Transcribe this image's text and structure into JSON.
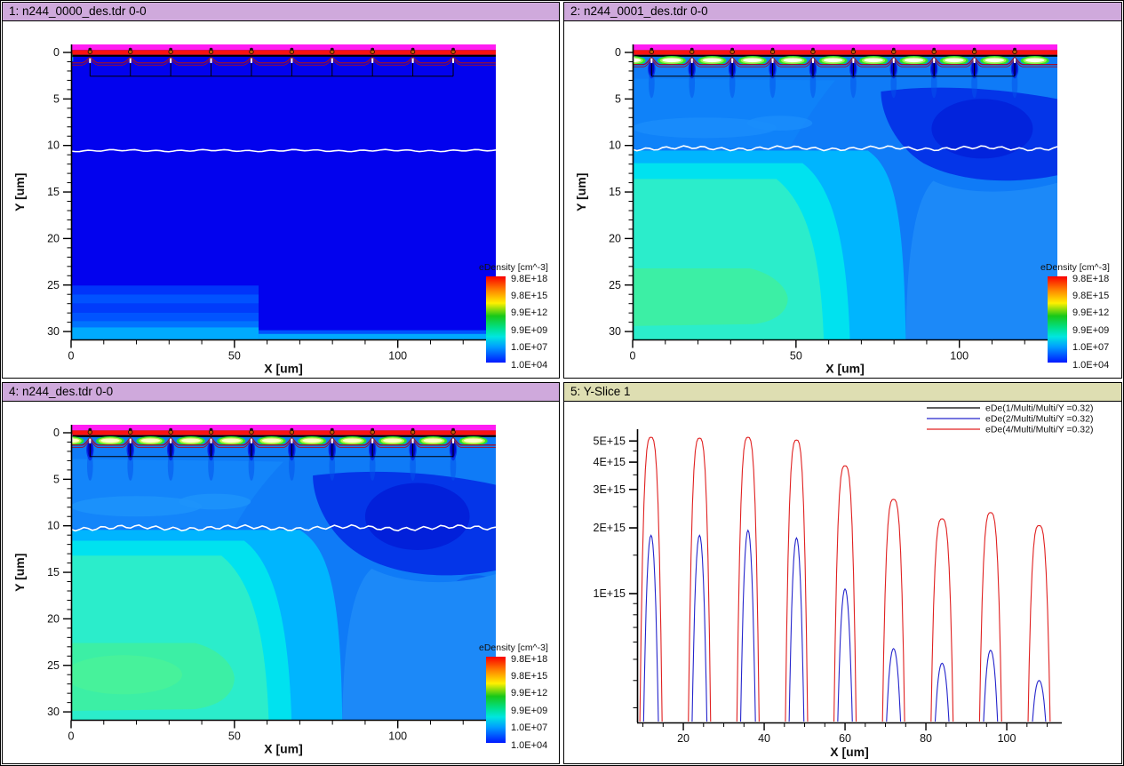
{
  "panels": {
    "p1": {
      "title": "1: n244_0000_des.tdr 0-0"
    },
    "p2": {
      "title": "2: n244_0001_des.tdr 0-0"
    },
    "p4": {
      "title": "4: n244_des.tdr 0-0"
    },
    "p5": {
      "title": "5: Y-Slice 1"
    }
  },
  "axes": {
    "contour": {
      "xlabel": "X [um]",
      "ylabel": "Y [um]",
      "x_ticks": [
        0,
        50,
        100
      ],
      "x_minor_step": 10,
      "x_max": 130,
      "y_ticks": [
        0,
        5,
        10,
        15,
        20,
        25,
        30
      ],
      "y_minor_step": 1
    },
    "slice": {
      "xlabel": "X [um]",
      "x_ticks": [
        20,
        40,
        60,
        80,
        100
      ],
      "x_minor_step": 5,
      "y_ticks": [
        {
          "label": "1E+15",
          "v": 1000000000000000.0
        },
        {
          "label": "2E+15",
          "v": 2000000000000000.0
        },
        {
          "label": "3E+15",
          "v": 3000000000000000.0
        },
        {
          "label": "4E+15",
          "v": 4000000000000000.0
        },
        {
          "label": "5E+15",
          "v": 5000000000000000.0
        }
      ],
      "y_minor": [
        300000000000000.0,
        400000000000000.0,
        500000000000000.0,
        600000000000000.0,
        700000000000000.0,
        800000000000000.0,
        900000000000000.0,
        1500000000000000.0,
        2500000000000000.0,
        3500000000000000.0,
        4500000000000000.0
      ]
    }
  },
  "colorbar": {
    "title": "eDensity [cm^-3]",
    "tick_labels": [
      "9.8E+18",
      "9.8E+15",
      "9.9E+12",
      "9.9E+09",
      "1.0E+07",
      "1.0E+04"
    ],
    "gradient": [
      [
        0,
        "#fa0000"
      ],
      [
        0.17,
        "#ff8c00"
      ],
      [
        0.31,
        "#fff000"
      ],
      [
        0.46,
        "#18c818"
      ],
      [
        0.6,
        "#00e08c"
      ],
      [
        0.7,
        "#00e6e0"
      ],
      [
        0.82,
        "#009cff"
      ],
      [
        1,
        "#0018ff"
      ]
    ]
  },
  "slice_legend": [
    {
      "label": "eDe(1/Multi/Multi/Y =0.32)",
      "color": "#000000"
    },
    {
      "label": "eDe(2/Multi/Multi/Y =0.32)",
      "color": "#2424cc"
    },
    {
      "label": "eDe(4/Multi/Multi/Y =0.32)",
      "color": "#e02020"
    }
  ],
  "chart_data": [
    {
      "id": 1,
      "type": "heatmap",
      "subtype": "contour-map",
      "title": "1: n244_0000_des.tdr 0-0",
      "variable": "eDensity [cm^-3]",
      "xlabel": "X [um]",
      "ylabel": "Y [um]",
      "x_range": [
        0,
        130
      ],
      "y_range": [
        0,
        30
      ],
      "colorbar_ticks": [
        "9.8E+18",
        "9.8E+15",
        "9.9E+12",
        "9.9E+09",
        "1.0E+07",
        "1.0E+04"
      ],
      "features": "bulk nearly uniform at lowest eDensity (dark blue ~1e4-1e6); white junction contour at y~10.5 um; faint striped higher-density block x<57 um between y=25-30; thin cyan layer along y=30; surface at y~0 with magenta emitter strip, red band and 10 periodic contact bumps (pitch 12.35 um)"
    },
    {
      "id": 2,
      "type": "heatmap",
      "subtype": "contour-map",
      "title": "2: n244_0001_des.tdr 0-0",
      "variable": "eDensity [cm^-3]",
      "xlabel": "X [um]",
      "ylabel": "Y [um]",
      "x_range": [
        0,
        130
      ],
      "y_range": [
        0,
        30
      ],
      "colorbar_ticks": [
        "9.8E+18",
        "9.8E+15",
        "9.9E+12",
        "9.9E+09",
        "1.0E+07",
        "1.0E+04"
      ],
      "features": "electron plume: cyan/turquoise region (≈1e7-1e10) fills x<65 um below white junction line y≈10.3; green core x<45, y 23-29; dark-blue depleted pocket x≈85-125, y≈4-13; bright green/white accumulation blobs under surface between contacts; dark-blue teardrops under each contact bump"
    },
    {
      "id": 4,
      "type": "heatmap",
      "subtype": "contour-map",
      "title": "4: n244_des.tdr 0-0",
      "variable": "eDensity [cm^-3]",
      "xlabel": "X [um]",
      "ylabel": "Y [um]",
      "x_range": [
        0,
        130
      ],
      "y_range": [
        0,
        30
      ],
      "colorbar_ticks": [
        "9.8E+18",
        "9.8E+15",
        "9.9E+12",
        "9.9E+09",
        "1.0E+07",
        "1.0E+04"
      ],
      "features": "steady state: largest plume, cyan region to x≈67, green core x<50 y 22-30, stronger surface accumulation stripes (white/yellow), deeper teardrops under bumps, dark-blue pocket x≈80-130 y≈5-15, wavy white junction line y≈10.0-10.4"
    },
    {
      "id": 5,
      "type": "line",
      "title": "5: Y-Slice 1",
      "xlabel": "X [um]",
      "ylabel": "",
      "x_range": [
        9,
        113
      ],
      "y_scale": "log",
      "y_range": [
        250000000000000.0,
        5600000000000000.0
      ],
      "legend_position": "top-right",
      "grid": false,
      "series": [
        {
          "name": "eDe(1/Multi/Multi/Y =0.32)",
          "color": "#000000",
          "half_width_um": 0,
          "shape_exp": 0,
          "peaks": [],
          "note": "entirely below axis floor 2.5e14 cm^-3 (not visible)"
        },
        {
          "name": "eDe(2/Multi/Multi/Y =0.32)",
          "color": "#2424cc",
          "half_width_um": 1.9,
          "shape_exp": 2.2,
          "peaks": [
            [
              12,
              1850000000000000.0
            ],
            [
              24,
              1850000000000000.0
            ],
            [
              36,
              1950000000000000.0
            ],
            [
              48,
              1800000000000000.0
            ],
            [
              60,
              1050000000000000.0
            ],
            [
              72,
              560000000000000.0
            ],
            [
              84,
              480000000000000.0
            ],
            [
              96,
              550000000000000.0
            ],
            [
              108,
              400000000000000.0
            ]
          ],
          "note": "valleys between peaks drop below 2.5e14 (off scale)"
        },
        {
          "name": "eDe(4/Multi/Multi/Y =0.32)",
          "color": "#e02020",
          "half_width_um": 2.8,
          "shape_exp": 3.2,
          "peaks": [
            [
              12,
              5200000000000000.0
            ],
            [
              24,
              5150000000000000.0
            ],
            [
              36,
              5200000000000000.0
            ],
            [
              48,
              5050000000000000.0
            ],
            [
              60,
              3850000000000000.0
            ],
            [
              72,
              2700000000000000.0
            ],
            [
              84,
              2200000000000000.0
            ],
            [
              96,
              2350000000000000.0
            ],
            [
              108,
              2050000000000000.0
            ]
          ],
          "note": "valleys between peaks drop below 2.5e14 (off scale)"
        }
      ]
    }
  ]
}
